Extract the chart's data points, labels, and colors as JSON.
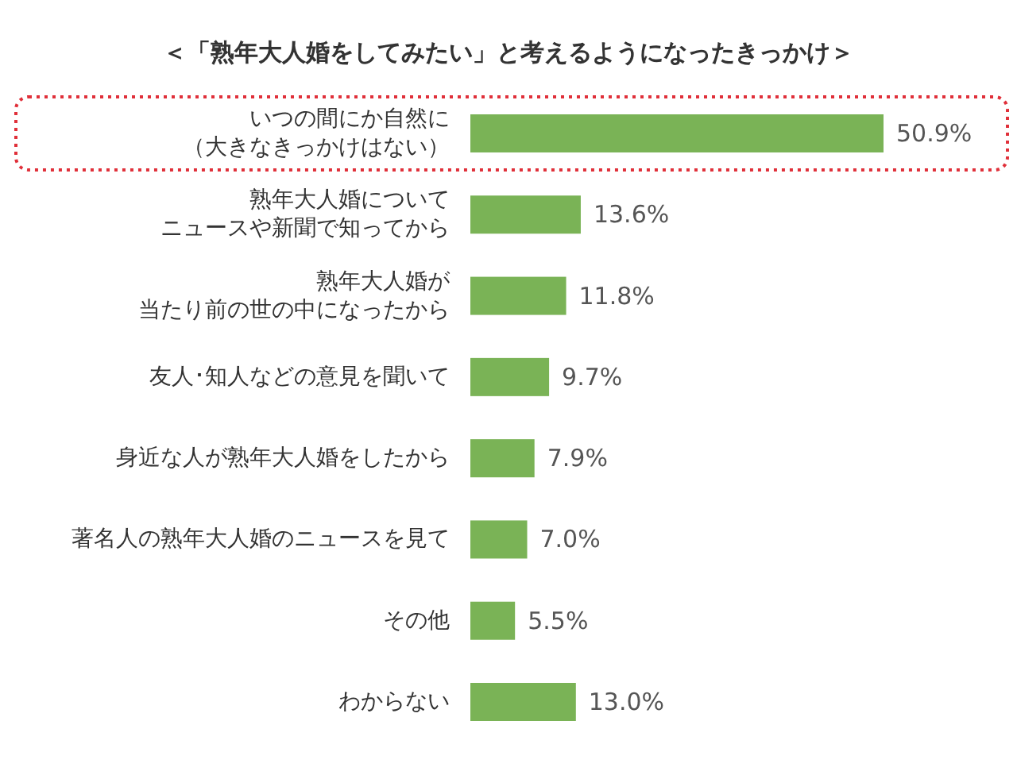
{
  "chart_data": {
    "type": "bar",
    "orientation": "horizontal",
    "title": "＜「熟年大人婚をしてみたい」と考えるようになったきっかけ＞",
    "categories": [
      "いつの間にか自然に（大きなきっかけはない）",
      "熟年大人婚についてニュースや新聞で知ってから",
      "熟年大人婚が当たり前の世の中になったから",
      "友人･知人などの意見を聞いて",
      "身近な人が熟年大人婚をしたから",
      "著名人の熟年大人婚のニュースを見て",
      "その他",
      "わからない"
    ],
    "values": [
      50.9,
      13.6,
      11.8,
      9.7,
      7.9,
      7.0,
      5.5,
      13.0
    ],
    "value_labels": [
      "50.9%",
      "13.6%",
      "11.8%",
      "9.7%",
      "7.9%",
      "7.0%",
      "5.5%",
      "13.0%"
    ],
    "color": "#7ab356"
  }
}
